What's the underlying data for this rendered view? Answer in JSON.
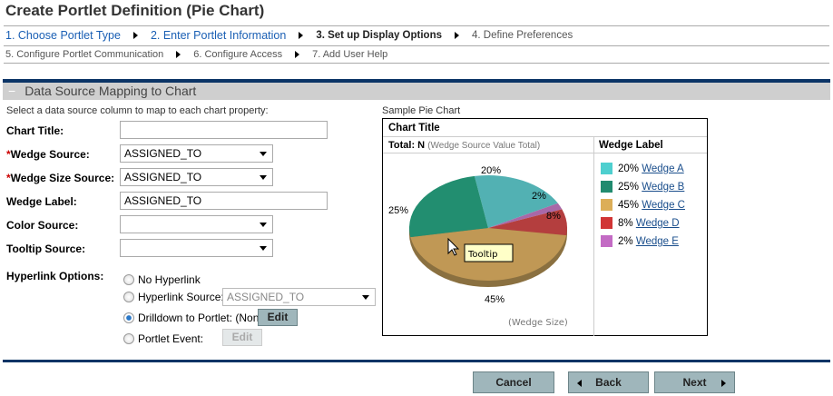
{
  "title": "Create Portlet Definition (Pie Chart)",
  "steps_row1": [
    {
      "label": "1. Choose Portlet Type",
      "state": "link"
    },
    {
      "label": "2. Enter Portlet Information",
      "state": "link"
    },
    {
      "label": "3. Set up Display Options",
      "state": "current"
    },
    {
      "label": "4. Define Preferences",
      "state": "future"
    }
  ],
  "steps_row2": [
    {
      "label": "5. Configure Portlet Communication"
    },
    {
      "label": "6. Configure Access"
    },
    {
      "label": "7. Add User Help"
    }
  ],
  "section": {
    "title": "Data Source Mapping to Chart",
    "instruction": "Select a data source column to map to each chart property:"
  },
  "form": {
    "chart_title": {
      "label": "Chart Title:",
      "value": ""
    },
    "wedge_source": {
      "label": "Wedge Source:",
      "value": "ASSIGNED_TO",
      "required": "*"
    },
    "wedge_size_source": {
      "label": "Wedge Size Source:",
      "value": "ASSIGNED_TO",
      "required": "*"
    },
    "wedge_label": {
      "label": "Wedge Label:",
      "value": "ASSIGNED_TO"
    },
    "color_source": {
      "label": "Color Source:",
      "value": ""
    },
    "tooltip_source": {
      "label": "Tooltip Source:",
      "value": ""
    },
    "hyperlink": {
      "label": "Hyperlink Options:",
      "no_hyperlink": "No Hyperlink",
      "hyperlink_source": "Hyperlink Source:",
      "hyperlink_source_value": "ASSIGNED_TO",
      "drilldown": "Drilldown to Portlet: (None)",
      "portlet_event": "Portlet Event:",
      "edit": "Edit",
      "selected": "drilldown"
    }
  },
  "sample": {
    "label": "Sample Pie Chart",
    "chart_title": "Chart Title",
    "total_bold": "Total: N",
    "total_note": "(Wedge Source Value Total)",
    "legend_title": "Wedge Label",
    "tooltip": "Tooltip",
    "wedge_size_note": "(Wedge Size)",
    "wedges": [
      {
        "pct": "20%",
        "name": "Wedge A",
        "value": 20,
        "color": "#4ecfcf",
        "pie_color": "#52b1b3"
      },
      {
        "pct": "25%",
        "name": "Wedge B",
        "value": 25,
        "color": "#218b6f",
        "pie_color": "#228e70"
      },
      {
        "pct": "45%",
        "name": "Wedge C",
        "value": 45,
        "color": "#dcae58",
        "pie_color": "#c09855"
      },
      {
        "pct": "8%",
        "name": "Wedge D",
        "value": 8,
        "color": "#d13535",
        "pie_color": "#b43e3e"
      },
      {
        "pct": "2%",
        "name": "Wedge E",
        "value": 2,
        "color": "#c36bc4",
        "pie_color": "#a868a8"
      }
    ]
  },
  "buttons": {
    "cancel": "Cancel",
    "back": "Back",
    "next": "Next"
  }
}
